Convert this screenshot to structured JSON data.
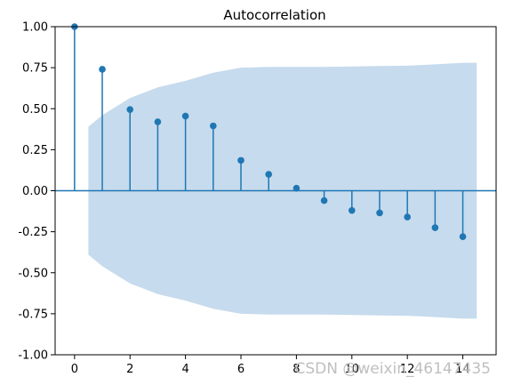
{
  "chart_data": {
    "type": "stem",
    "title": "Autocorrelation",
    "xlabel": "",
    "ylabel": "",
    "x": [
      0,
      1,
      2,
      3,
      4,
      5,
      6,
      7,
      8,
      9,
      10,
      11,
      12,
      13,
      14
    ],
    "values": [
      1.0,
      0.74,
      0.495,
      0.42,
      0.455,
      0.395,
      0.185,
      0.1,
      0.015,
      -0.06,
      -0.12,
      -0.135,
      -0.16,
      -0.225,
      -0.28
    ],
    "confidence_band": {
      "x": [
        0.5,
        1,
        2,
        3,
        4,
        5,
        6,
        7,
        8,
        9,
        10,
        11,
        12,
        13,
        14,
        14.5
      ],
      "upper": [
        0.39,
        0.46,
        0.565,
        0.63,
        0.67,
        0.72,
        0.75,
        0.755,
        0.755,
        0.755,
        0.757,
        0.76,
        0.762,
        0.77,
        0.78,
        0.78
      ]
    },
    "xlim": [
      -0.7,
      15.2
    ],
    "ylim": [
      -1.0,
      1.0
    ],
    "xticks": [
      0,
      2,
      4,
      6,
      8,
      10,
      12,
      14
    ],
    "yticks": [
      "-1.00",
      "-0.75",
      "-0.50",
      "-0.25",
      "0.00",
      "0.25",
      "0.50",
      "0.75",
      "1.00"
    ],
    "grid": false,
    "colors": {
      "stem": "#1f77b4",
      "band": "#c6dbed",
      "axis": "#000000"
    }
  },
  "watermark": "CSDN @weixin_46147435"
}
